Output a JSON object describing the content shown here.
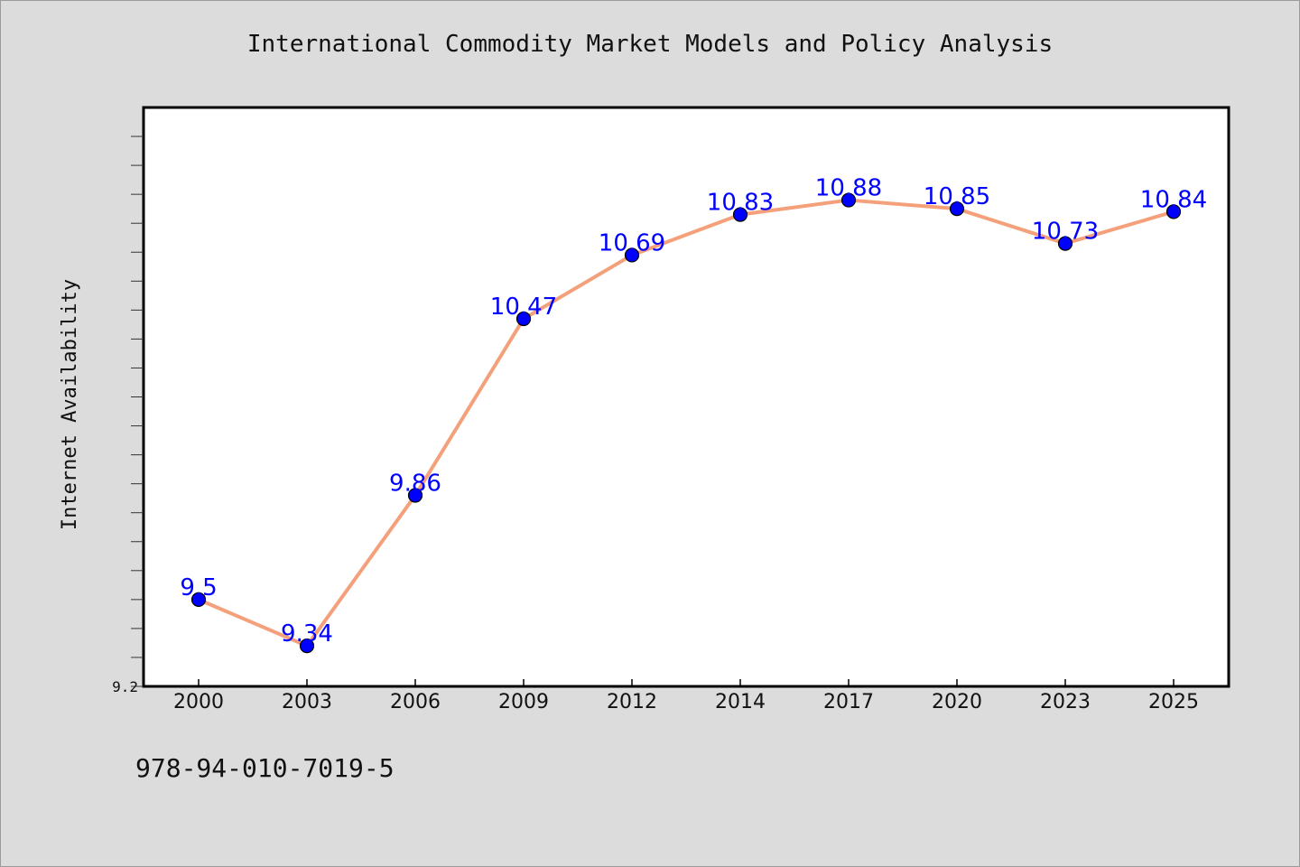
{
  "page": {
    "background": "#dcdcdc",
    "isbn": "978-94-010-7019-5"
  },
  "chart_data": {
    "type": "line",
    "title": "International Commodity Market Models and Policy Analysis",
    "xlabel": "",
    "ylabel": "Internet Availability",
    "categories": [
      "2000",
      "2003",
      "2006",
      "2009",
      "2012",
      "2014",
      "2017",
      "2020",
      "2023",
      "2025"
    ],
    "series": [
      {
        "values": [
          9.5,
          9.34,
          9.86,
          10.47,
          10.69,
          10.83,
          10.88,
          10.85,
          10.73,
          10.84
        ],
        "line_color": "#f4a07a",
        "marker_color": "#0000ff"
      }
    ],
    "data_labels": [
      "9.5",
      "9.34",
      "9.86",
      "10.47",
      "10.69",
      "10.83",
      "10.88",
      "10.85",
      "10.73",
      "10.84"
    ],
    "ylim": [
      9.2,
      11.2
    ],
    "y_tick_labels": [
      "9.2"
    ],
    "y_minor_step": 0.1,
    "grid": false,
    "legend": "none",
    "plot_background": "#ffffff",
    "label_color": "#0000ff"
  }
}
